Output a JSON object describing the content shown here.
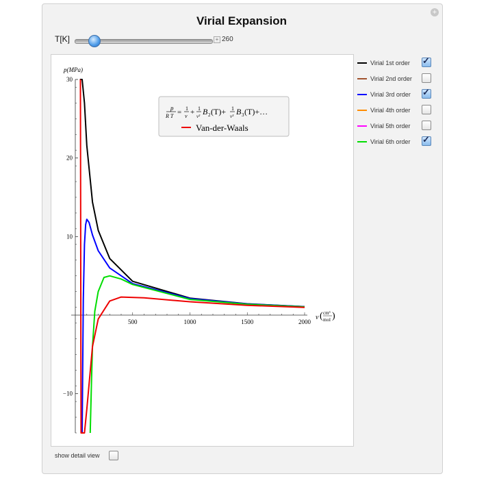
{
  "title": "Virial Expansion",
  "slider": {
    "label": "T[K]",
    "value": "260",
    "fraction": 0.14
  },
  "plot": {
    "y_axis_label": "p(MPa)",
    "x_axis_label": "v",
    "x_unit_num": "cm³",
    "x_unit_den": "mol",
    "x_ticks": [
      "500",
      "1000",
      "1500",
      "2000"
    ],
    "y_ticks": [
      "30",
      "20",
      "10",
      "−10"
    ],
    "formula": {
      "lhs_num": "p",
      "lhs_den": "R T",
      "equals": "=",
      "t1_num": "1",
      "t1_den": "v",
      "plus1": "+",
      "t2_num": "1",
      "t2_den": "v²",
      "b2": "B",
      "b2_sub": "2",
      "b2_arg": "(T)+",
      "t3_num": "1",
      "t3_den": "v³",
      "b3": "B",
      "b3_sub": "3",
      "b3_arg": "(T)+…"
    },
    "vdw_label": "Van-der-Waals"
  },
  "legend": [
    {
      "label": "Virial 1st order",
      "color": "#000000",
      "checked": true
    },
    {
      "label": "Virial 2nd order",
      "color": "#a0522d",
      "checked": false
    },
    {
      "label": "Virial 3rd order",
      "color": "#0000ff",
      "checked": true
    },
    {
      "label": "Virial 4th order",
      "color": "#ff8c00",
      "checked": false
    },
    {
      "label": "Virial 5th order",
      "color": "#ff00ff",
      "checked": false
    },
    {
      "label": "Virial 6th order",
      "color": "#00dd00",
      "checked": true
    }
  ],
  "vdw_color": "#ee0000",
  "detail": {
    "label": "show detail view",
    "checked": false
  },
  "chart_data": {
    "type": "line",
    "xlabel": "v (cm³/mol)",
    "ylabel": "p(MPa)",
    "xlim": [
      0,
      2000
    ],
    "ylim": [
      -15,
      30
    ],
    "series": [
      {
        "name": "Virial 1st order",
        "x": [
          40,
          60,
          80,
          100,
          150,
          200,
          300,
          500,
          1000,
          1500,
          2000
        ],
        "y": [
          30,
          30,
          27,
          21.6,
          14.4,
          10.8,
          7.2,
          4.3,
          2.16,
          1.44,
          1.08
        ]
      },
      {
        "name": "Virial 3rd order",
        "x": [
          60,
          70,
          80,
          90,
          100,
          120,
          150,
          200,
          300,
          500,
          1000,
          1500,
          2000
        ],
        "y": [
          -15,
          2,
          9,
          11.5,
          12.2,
          11.8,
          10.2,
          8.2,
          6.0,
          4.0,
          2.1,
          1.42,
          1.07
        ]
      },
      {
        "name": "Virial 6th order",
        "x": [
          130,
          140,
          150,
          170,
          200,
          250,
          300,
          400,
          500,
          1000,
          1500,
          2000
        ],
        "y": [
          -15,
          -9,
          -4,
          0.5,
          3.0,
          4.8,
          5.0,
          4.6,
          3.9,
          2.0,
          1.38,
          1.05
        ]
      },
      {
        "name": "Van-der-Waals",
        "x": [
          45,
          50,
          60,
          80,
          100,
          150,
          200,
          300,
          400,
          600,
          1000,
          1500,
          2000
        ],
        "y": [
          30,
          -15,
          -15,
          -15,
          -12,
          -4,
          -0.5,
          1.8,
          2.3,
          2.2,
          1.7,
          1.25,
          0.98
        ]
      }
    ]
  }
}
